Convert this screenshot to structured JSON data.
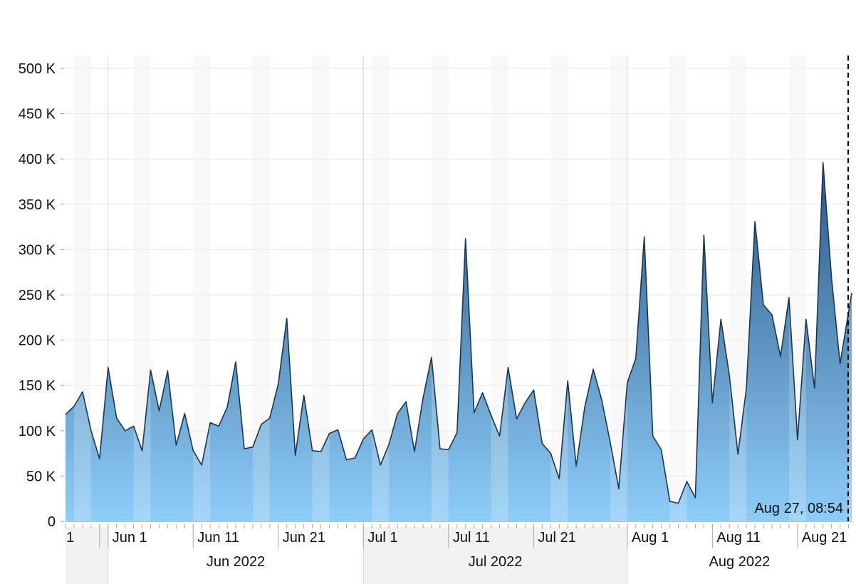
{
  "chart_data": {
    "type": "area",
    "x_start": "2022-05-27",
    "x_end": "2022-08-27T08:54",
    "x": [
      "2022-05-27",
      "2022-05-28",
      "2022-05-29",
      "2022-05-30",
      "2022-05-31",
      "2022-06-01",
      "2022-06-02",
      "2022-06-03",
      "2022-06-04",
      "2022-06-05",
      "2022-06-06",
      "2022-06-07",
      "2022-06-08",
      "2022-06-09",
      "2022-06-10",
      "2022-06-11",
      "2022-06-12",
      "2022-06-13",
      "2022-06-14",
      "2022-06-15",
      "2022-06-16",
      "2022-06-17",
      "2022-06-18",
      "2022-06-19",
      "2022-06-20",
      "2022-06-21",
      "2022-06-22",
      "2022-06-23",
      "2022-06-24",
      "2022-06-25",
      "2022-06-26",
      "2022-06-27",
      "2022-06-28",
      "2022-06-29",
      "2022-06-30",
      "2022-07-01",
      "2022-07-02",
      "2022-07-03",
      "2022-07-04",
      "2022-07-05",
      "2022-07-06",
      "2022-07-07",
      "2022-07-08",
      "2022-07-09",
      "2022-07-10",
      "2022-07-11",
      "2022-07-12",
      "2022-07-13",
      "2022-07-14",
      "2022-07-15",
      "2022-07-16",
      "2022-07-17",
      "2022-07-18",
      "2022-07-19",
      "2022-07-20",
      "2022-07-21",
      "2022-07-22",
      "2022-07-23",
      "2022-07-24",
      "2022-07-25",
      "2022-07-26",
      "2022-07-27",
      "2022-07-28",
      "2022-07-29",
      "2022-07-30",
      "2022-07-31",
      "2022-08-01",
      "2022-08-02",
      "2022-08-03",
      "2022-08-04",
      "2022-08-05",
      "2022-08-06",
      "2022-08-07",
      "2022-08-08",
      "2022-08-09",
      "2022-08-10",
      "2022-08-11",
      "2022-08-12",
      "2022-08-13",
      "2022-08-14",
      "2022-08-15",
      "2022-08-16",
      "2022-08-17",
      "2022-08-18",
      "2022-08-19",
      "2022-08-20",
      "2022-08-21",
      "2022-08-22",
      "2022-08-23",
      "2022-08-24",
      "2022-08-25",
      "2022-08-26",
      "2022-08-27T08:54"
    ],
    "y": [
      118000,
      127000,
      143000,
      100000,
      69000,
      170000,
      114000,
      100000,
      105000,
      78000,
      167000,
      122000,
      166000,
      84000,
      119000,
      78000,
      62000,
      109000,
      105000,
      126000,
      176000,
      80000,
      82000,
      107000,
      114000,
      152000,
      224000,
      73000,
      139000,
      78000,
      77000,
      97000,
      101000,
      68000,
      70000,
      91000,
      101000,
      62000,
      85000,
      119000,
      132000,
      77000,
      136000,
      181000,
      80000,
      79000,
      98000,
      312000,
      120000,
      142000,
      117000,
      94000,
      170000,
      113000,
      131000,
      145000,
      86000,
      75000,
      47000,
      155000,
      61000,
      126000,
      168000,
      134000,
      87000,
      36000,
      153000,
      180000,
      314000,
      94000,
      79000,
      22000,
      20000,
      44000,
      26000,
      316000,
      131000,
      223000,
      161000,
      74000,
      147000,
      331000,
      239000,
      228000,
      182000,
      247000,
      90000,
      223000,
      147000,
      396000,
      268000,
      174000,
      252000
    ],
    "ylim": [
      0,
      510000
    ],
    "y_ticks": [
      0,
      50000,
      100000,
      150000,
      200000,
      250000,
      300000,
      350000,
      400000,
      450000,
      500000
    ],
    "y_tick_labels": [
      "0",
      "50 K",
      "100 K",
      "150 K",
      "200 K",
      "250 K",
      "300 K",
      "350 K",
      "400 K",
      "450 K",
      "500 K"
    ],
    "x_tick_labels": [
      {
        "date": "2022-05-31",
        "label": "1"
      },
      {
        "date": "2022-06-01",
        "label": "Jun 1"
      },
      {
        "date": "2022-06-11",
        "label": "Jun 11"
      },
      {
        "date": "2022-06-21",
        "label": "Jun 21"
      },
      {
        "date": "2022-07-01",
        "label": "Jul 1"
      },
      {
        "date": "2022-07-11",
        "label": "Jul 11"
      },
      {
        "date": "2022-07-21",
        "label": "Jul 21"
      },
      {
        "date": "2022-08-01",
        "label": "Aug 1"
      },
      {
        "date": "2022-08-11",
        "label": "Aug 11"
      },
      {
        "date": "2022-08-21",
        "label": "Aug 21"
      }
    ],
    "month_labels": [
      {
        "label": "Jun 2022",
        "start": "2022-06-01",
        "end": "2022-07-01"
      },
      {
        "label": "Jul 2022",
        "start": "2022-07-01",
        "end": "2022-08-01"
      },
      {
        "label": "Aug 2022",
        "start": "2022-08-01",
        "end": "2022-08-27T08:54"
      }
    ],
    "weekend_shading": true,
    "grid": true,
    "current_time_label": "Aug 27, 08:54",
    "colors": {
      "area_top": "#2a5a86",
      "area_bottom": "#8ecdf8",
      "line": "#1b3556",
      "grid": "#e6e6e6",
      "weekend": "#f7f7f7",
      "month_band": "#f2f2f2"
    }
  }
}
